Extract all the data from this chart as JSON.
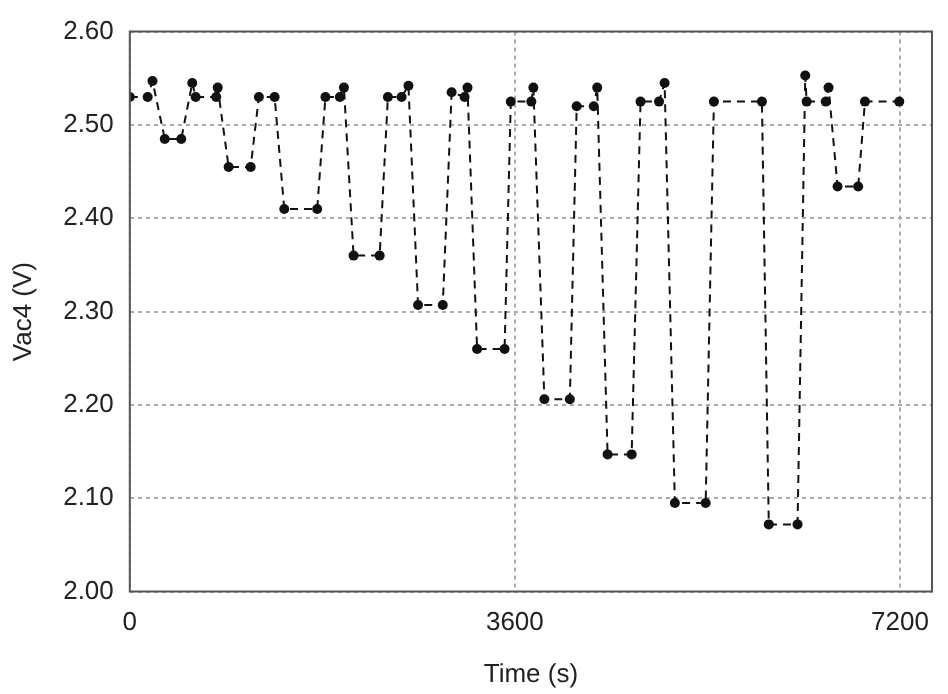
{
  "chart_data": {
    "type": "line",
    "xlabel": "Time (s)",
    "ylabel": "Vac4 (V)",
    "x": [
      0,
      167,
      212,
      327,
      481,
      584,
      616,
      808,
      822,
      924,
      1130,
      1207,
      1354,
      1444,
      1752,
      1829,
      1964,
      2002,
      2092,
      2336,
      2413,
      2541,
      2605,
      2695,
      2926,
      3009,
      3130,
      3157,
      3247,
      3504,
      3562,
      3754,
      3773,
      3876,
      4114,
      4178,
      4338,
      4370,
      4467,
      4692,
      4775,
      4948,
      5000,
      5096,
      5384,
      5461,
      5910,
      5974,
      6243,
      6315,
      6328,
      6507,
      6533,
      6617,
      6810,
      6873,
      7194
    ],
    "series": [
      {
        "color": "#111111",
        "values": [
          2.53,
          2.53,
          2.547,
          2.485,
          2.485,
          2.545,
          2.53,
          2.53,
          2.54,
          2.455,
          2.455,
          2.53,
          2.53,
          2.41,
          2.41,
          2.53,
          2.53,
          2.54,
          2.36,
          2.36,
          2.53,
          2.53,
          2.542,
          2.307,
          2.307,
          2.535,
          2.53,
          2.54,
          2.26,
          2.26,
          2.525,
          2.525,
          2.54,
          2.206,
          2.206,
          2.52,
          2.52,
          2.54,
          2.147,
          2.147,
          2.525,
          2.525,
          2.545,
          2.095,
          2.095,
          2.525,
          2.525,
          2.072,
          2.072,
          2.553,
          2.525,
          2.525,
          2.54,
          2.434,
          2.434,
          2.525,
          2.525
        ]
      }
    ],
    "xlim": [
      0,
      7500
    ],
    "xticks": [
      0,
      3600,
      7200
    ],
    "ylim": [
      2.0,
      2.6
    ],
    "yticks": [
      {
        "value": 2.0,
        "label": "2.00"
      },
      {
        "value": 2.1,
        "label": "2.10"
      },
      {
        "value": 2.2,
        "label": "2.20"
      },
      {
        "value": 2.3,
        "label": "2.30"
      },
      {
        "value": 2.4,
        "label": "2.40"
      },
      {
        "value": 2.5,
        "label": "2.50"
      },
      {
        "value": 2.6,
        "label": "2.60"
      }
    ],
    "grid": true,
    "legend": false,
    "marker": "circle",
    "line_style": "dashed"
  }
}
